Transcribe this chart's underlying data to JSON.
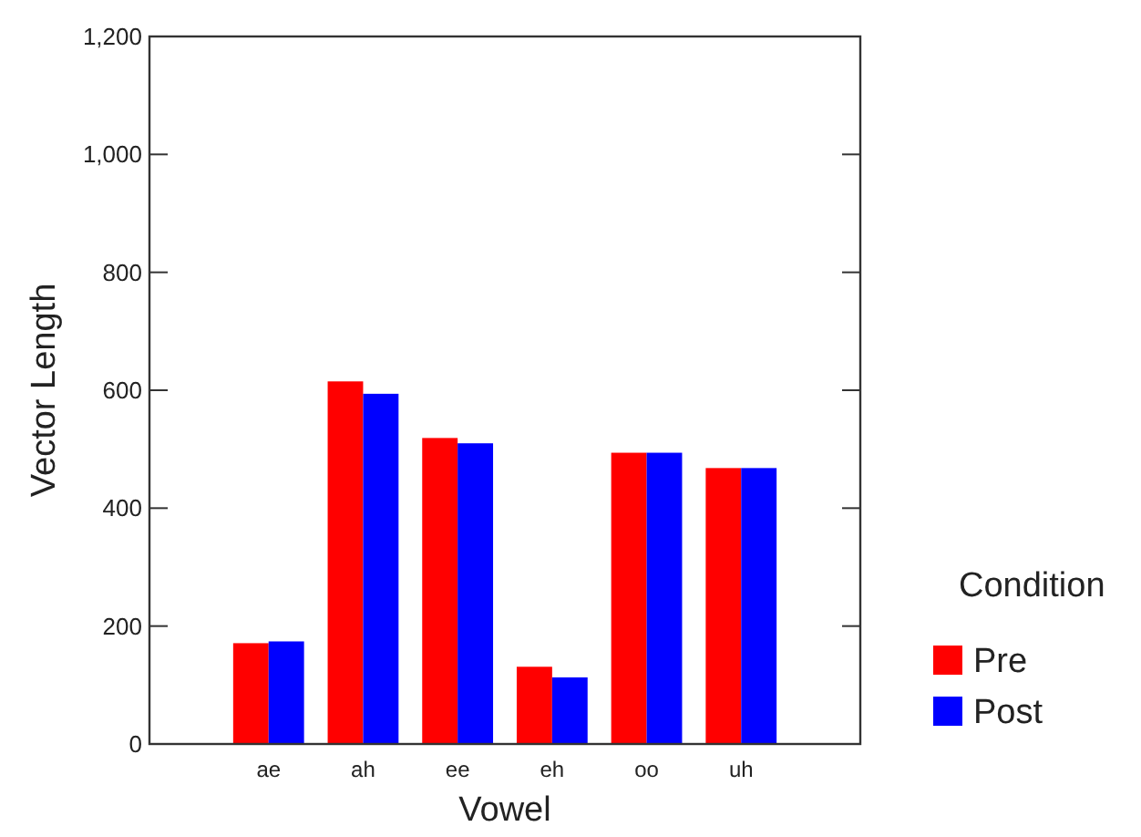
{
  "chart_data": {
    "type": "bar",
    "xlabel": "Vowel",
    "ylabel": "Vector Length",
    "legend_title": "Condition",
    "legend": "right",
    "categories": [
      "ae",
      "ah",
      "ee",
      "eh",
      "oo",
      "uh"
    ],
    "ylim": [
      0,
      1200
    ],
    "yticks": [
      0,
      {
        "value": 200,
        "label": "200"
      },
      {
        "value": 400,
        "label": "400"
      },
      {
        "value": 600,
        "label": "600"
      },
      {
        "value": 800,
        "label": "800"
      },
      {
        "value": 1000,
        "label": "1,000"
      },
      {
        "value": 1200,
        "label": "1,200"
      }
    ],
    "series": [
      {
        "name": "Pre",
        "color": "#ff0000",
        "values": [
          171,
          615,
          519,
          131,
          494,
          468
        ]
      },
      {
        "name": "Post",
        "color": "#0000ff",
        "values": [
          174,
          594,
          510,
          113,
          494,
          468
        ]
      }
    ]
  }
}
